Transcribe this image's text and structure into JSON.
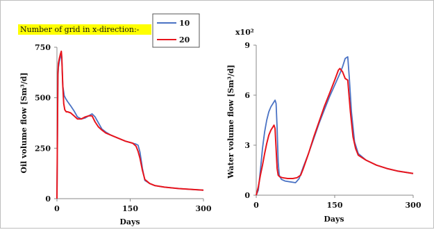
{
  "annotation": "Number of grid in x-direction:-",
  "colors": {
    "series_10": "#4a72c4",
    "series_20": "#e8141c",
    "highlight": "#ffff00",
    "axis": "#888888"
  },
  "legend": {
    "placement": "top-center",
    "entries": [
      "10",
      "20"
    ]
  },
  "chart_data": [
    {
      "type": "line",
      "title": "",
      "xlabel": "Days",
      "ylabel": "Oil volume flow [Sm³/d]",
      "xlim": [
        0,
        300
      ],
      "ylim": [
        0,
        750
      ],
      "xticks": [
        "0",
        "150",
        "300"
      ],
      "yticks": [
        "0",
        "250",
        "500",
        "750"
      ],
      "grid": false,
      "series": [
        {
          "name": "10",
          "x": [
            0,
            2,
            3,
            5,
            7,
            9,
            10,
            12,
            15,
            18,
            22,
            28,
            35,
            42,
            50,
            58,
            65,
            72,
            78,
            85,
            92,
            100,
            110,
            125,
            140,
            155,
            162,
            166,
            170,
            175,
            180,
            190,
            200,
            220,
            250,
            280,
            300
          ],
          "y": [
            0,
            600,
            650,
            680,
            700,
            710,
            690,
            560,
            510,
            495,
            480,
            460,
            435,
            405,
            395,
            400,
            410,
            420,
            405,
            375,
            345,
            330,
            315,
            300,
            285,
            275,
            270,
            265,
            230,
            150,
            90,
            75,
            65,
            57,
            50,
            45,
            42
          ]
        },
        {
          "name": "20",
          "x": [
            0,
            2,
            3,
            5,
            7,
            9,
            10,
            12,
            14,
            16,
            19,
            22,
            28,
            35,
            42,
            50,
            58,
            65,
            72,
            78,
            85,
            92,
            100,
            110,
            125,
            140,
            155,
            162,
            166,
            170,
            175,
            180,
            190,
            200,
            220,
            250,
            280,
            300
          ],
          "y": [
            0,
            620,
            670,
            695,
            715,
            730,
            700,
            560,
            470,
            440,
            430,
            430,
            425,
            410,
            395,
            395,
            405,
            410,
            410,
            380,
            355,
            340,
            325,
            315,
            300,
            285,
            275,
            260,
            235,
            200,
            140,
            95,
            75,
            65,
            57,
            50,
            45,
            42
          ]
        }
      ]
    },
    {
      "type": "line",
      "title": "",
      "xlabel": "Days",
      "ylabel": "Water volume flow [Sm³/d]",
      "y_multiplier": "x10²",
      "xlim": [
        0,
        300
      ],
      "ylim": [
        0,
        9
      ],
      "xticks": [
        "0",
        "150",
        "300"
      ],
      "yticks": [
        "0",
        "3",
        "6",
        "9"
      ],
      "grid": false,
      "series": [
        {
          "name": "10",
          "x": [
            0,
            4,
            8,
            12,
            16,
            20,
            24,
            28,
            32,
            36,
            38,
            40,
            42,
            44,
            48,
            55,
            65,
            75,
            78,
            82,
            90,
            100,
            110,
            120,
            130,
            140,
            150,
            160,
            165,
            170,
            175,
            178,
            182,
            188,
            195,
            210,
            230,
            250,
            270,
            300
          ],
          "y": [
            0,
            0.3,
            1.5,
            2.8,
            3.8,
            4.5,
            5.0,
            5.3,
            5.5,
            5.7,
            5.5,
            4.0,
            2.0,
            1.2,
            0.95,
            0.85,
            0.8,
            0.75,
            0.85,
            1.0,
            1.7,
            2.5,
            3.4,
            4.3,
            5.1,
            5.9,
            6.6,
            7.3,
            7.7,
            8.2,
            8.3,
            7.0,
            5.0,
            3.2,
            2.5,
            2.1,
            1.8,
            1.6,
            1.45,
            1.3
          ]
        },
        {
          "name": "20",
          "x": [
            0,
            4,
            8,
            12,
            16,
            20,
            24,
            28,
            32,
            34,
            36,
            38,
            40,
            42,
            45,
            50,
            60,
            70,
            78,
            85,
            90,
            100,
            110,
            120,
            130,
            140,
            150,
            157,
            160,
            165,
            170,
            175,
            180,
            185,
            190,
            195,
            210,
            230,
            250,
            270,
            300
          ],
          "y": [
            0,
            0.5,
            1.2,
            1.8,
            2.5,
            3.1,
            3.6,
            3.9,
            4.1,
            4.2,
            4.0,
            2.8,
            1.6,
            1.2,
            1.1,
            1.05,
            1.0,
            1.0,
            1.05,
            1.2,
            1.6,
            2.5,
            3.5,
            4.4,
            5.3,
            6.1,
            6.9,
            7.5,
            7.6,
            7.4,
            7.0,
            6.9,
            5.0,
            3.5,
            2.8,
            2.4,
            2.1,
            1.8,
            1.6,
            1.45,
            1.3
          ]
        }
      ]
    }
  ]
}
